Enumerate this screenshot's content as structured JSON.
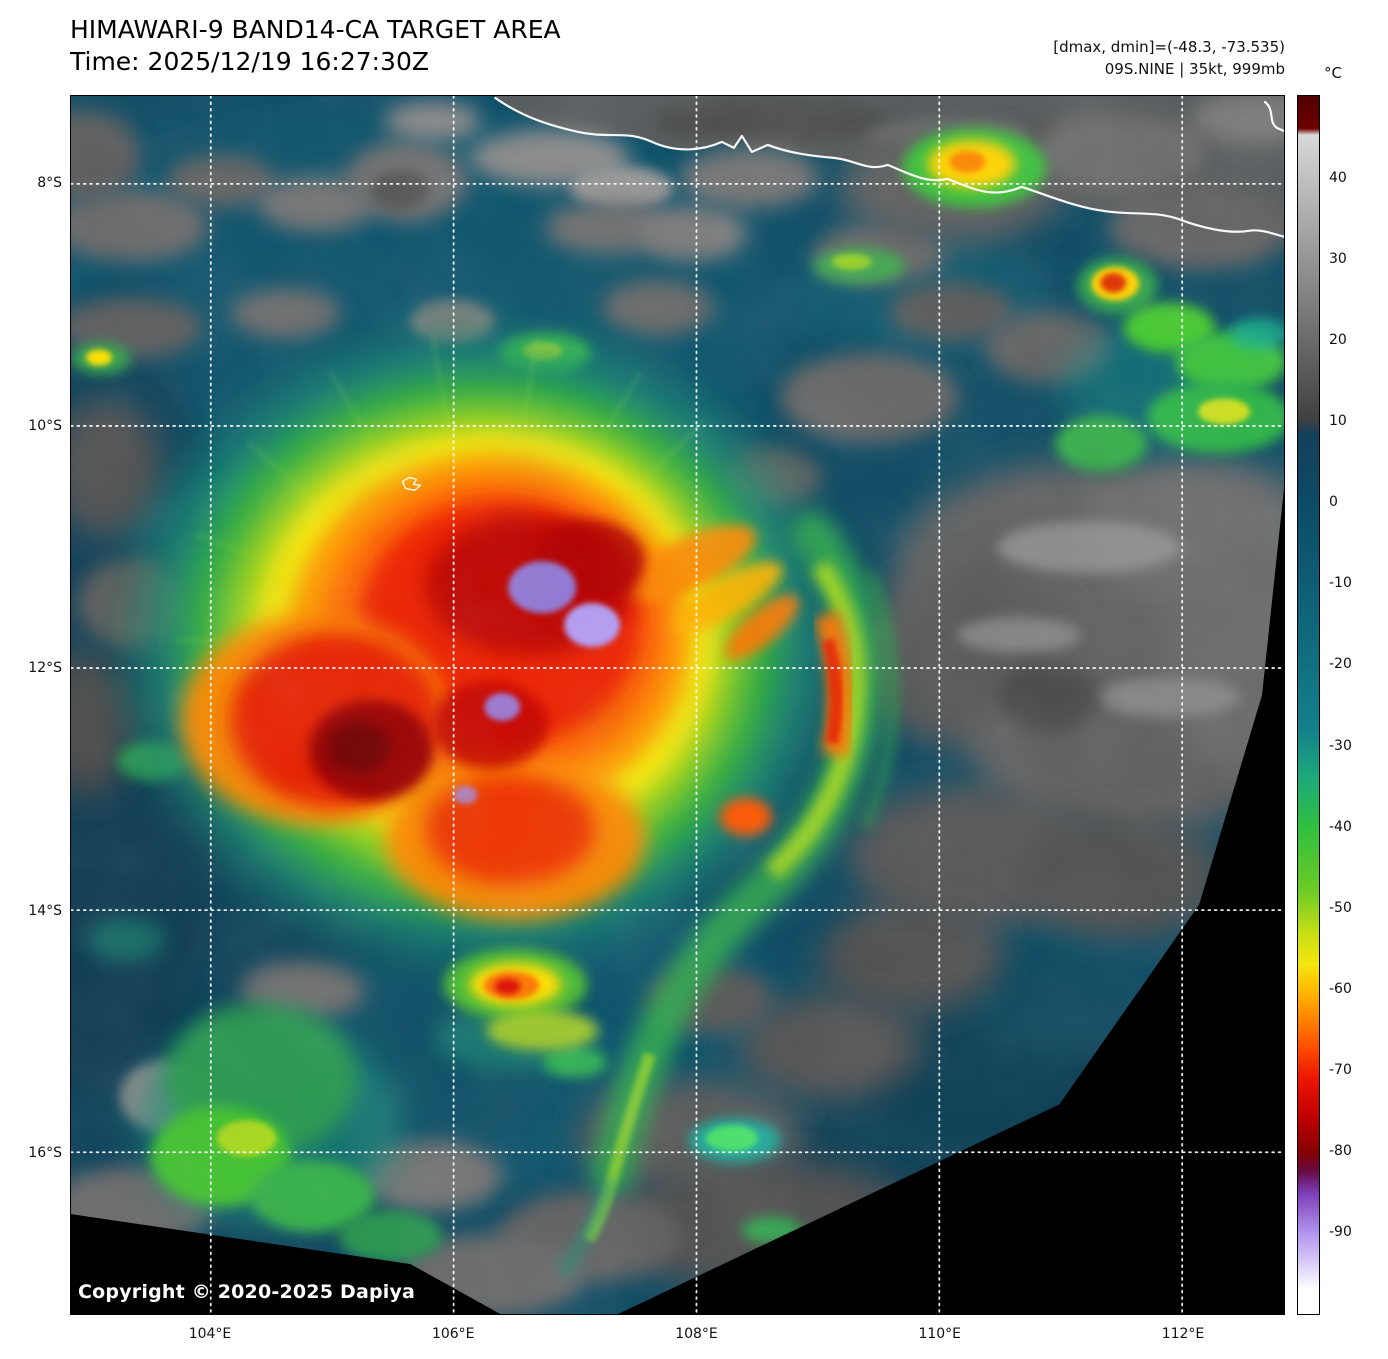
{
  "header": {
    "title": "HIMAWARI-9 BAND14-CA TARGET AREA",
    "time_line": "Time: 2025/12/19 16:27:30Z",
    "dminmax_line": "[dmax, dmin]=(-48.3, -73.535)",
    "storm_line": "09S.NINE | 35kt, 999mb"
  },
  "colorbar": {
    "unit_label": "°C",
    "ticks": [
      40,
      30,
      20,
      10,
      0,
      -10,
      -20,
      -30,
      -40,
      -50,
      -60,
      -70,
      -80,
      -90
    ],
    "gradient_stops": [
      {
        "temp": 50,
        "color": "#500000"
      },
      {
        "temp": 46,
        "color": "#6e0000"
      },
      {
        "temp": 45.2,
        "color": "#d8d8d8"
      },
      {
        "temp": 10,
        "color": "#3f3f3f"
      },
      {
        "temp": 8.5,
        "color": "#143f5a"
      },
      {
        "temp": 0,
        "color": "#0d4a66"
      },
      {
        "temp": -10,
        "color": "#0e5d75"
      },
      {
        "temp": -20,
        "color": "#11707f"
      },
      {
        "temp": -28,
        "color": "#13808a"
      },
      {
        "temp": -34,
        "color": "#1da97a"
      },
      {
        "temp": -40,
        "color": "#2fbf3f"
      },
      {
        "temp": -48,
        "color": "#6ecb25"
      },
      {
        "temp": -53,
        "color": "#c6de16"
      },
      {
        "temp": -57,
        "color": "#f5e50d"
      },
      {
        "temp": -61,
        "color": "#ffae00"
      },
      {
        "temp": -66,
        "color": "#ff5f00"
      },
      {
        "temp": -71,
        "color": "#ee1500"
      },
      {
        "temp": -76,
        "color": "#bb0000"
      },
      {
        "temp": -80,
        "color": "#870000"
      },
      {
        "temp": -82.5,
        "color": "#650c45"
      },
      {
        "temp": -85,
        "color": "#7c3cb6"
      },
      {
        "temp": -90,
        "color": "#b195ee"
      },
      {
        "temp": -94,
        "color": "#ddd0f8"
      },
      {
        "temp": -97,
        "color": "#ffffff"
      },
      {
        "temp": -100,
        "color": "#ffffff"
      }
    ]
  },
  "axes": {
    "lat_ticks": [
      "8°S",
      "10°S",
      "12°S",
      "14°S",
      "16°S"
    ],
    "lon_ticks": [
      "104°E",
      "106°E",
      "108°E",
      "110°E",
      "112°E"
    ]
  },
  "map": {
    "copyright": "Copyright © 2020-2025 Dapiya"
  }
}
